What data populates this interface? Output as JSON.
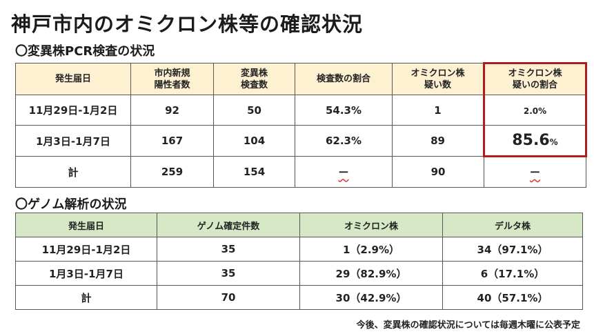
{
  "title": "神戸市内のオミクロン株等の確認状況",
  "section1": {
    "heading": "〇変異株PCR検査の状況",
    "headers": [
      "発生届日",
      "市内新規\n陽性者数",
      "変異株\n検査数",
      "検査数の割合",
      "オミクロン株\n疑い数",
      "オミクロン株\n疑いの割合"
    ],
    "rows": [
      {
        "date": "11月29日-1月2日",
        "positives": "92",
        "tests": "50",
        "ratio": "54.3%",
        "suspected": "1",
        "suspected_ratio": "2.0%"
      },
      {
        "date": "1月3日-1月7日",
        "positives": "167",
        "tests": "104",
        "ratio": "62.3%",
        "suspected": "89",
        "suspected_ratio_num": "85.6",
        "suspected_ratio_unit": "%"
      },
      {
        "date": "計",
        "positives": "259",
        "tests": "154",
        "ratio": "ー",
        "suspected": "90",
        "suspected_ratio": "ー"
      }
    ]
  },
  "section2": {
    "heading": "〇ゲノム解析の状況",
    "headers": [
      "発生届日",
      "ゲノム確定件数",
      "オミクロン株",
      "デルタ株"
    ],
    "rows": [
      {
        "date": "11月29日-1月2日",
        "confirmed": "35",
        "omicron": "1（2.9%）",
        "delta": "34（97.1%）"
      },
      {
        "date": "1月3日-1月7日",
        "confirmed": "35",
        "omicron": "29（82.9%）",
        "delta": "6（17.1%）"
      },
      {
        "date": "計",
        "confirmed": "70",
        "omicron": "30（42.9%）",
        "delta": "40（57.1%）"
      }
    ]
  },
  "footnote": "今後、変異株の確認状況については毎週木曜に公表予定",
  "colors": {
    "table1_header": "#fdf1d2",
    "table2_header": "#d7e8c6",
    "highlight_border": "#b01c1c"
  }
}
